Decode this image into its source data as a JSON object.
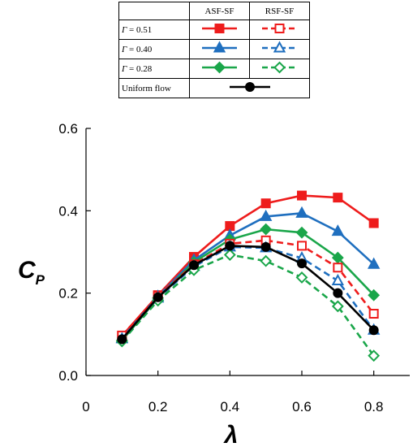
{
  "legend": {
    "header": [
      "",
      "ASF-SF",
      "RSF-SF"
    ],
    "rows": [
      {
        "gamma_symbol": "Γ",
        "eq": " = 0.51",
        "color": "#ee1c1c",
        "marker": "square"
      },
      {
        "gamma_symbol": "Γ",
        "eq": " = 0.40",
        "color": "#1f6fbf",
        "marker": "triangle"
      },
      {
        "gamma_symbol": "Γ",
        "eq": " = 0.28",
        "color": "#1aa64a",
        "marker": "diamond"
      }
    ],
    "uniform": {
      "label": "Uniform flow",
      "color": "#000000",
      "marker": "circle"
    }
  },
  "chart_data": {
    "type": "line",
    "xlabel": "λ",
    "ylabel_main": "C",
    "ylabel_sub": "P",
    "xlim": [
      0,
      0.9
    ],
    "ylim": [
      0,
      0.6
    ],
    "xticks": [
      0,
      0.2,
      0.4,
      0.6,
      0.8
    ],
    "xtick_labels": [
      "0",
      "0.2",
      "0.4",
      "0.6",
      "0.8"
    ],
    "yticks": [
      0,
      0.2,
      0.4,
      0.6
    ],
    "ytick_labels": [
      "0.0",
      "0.2",
      "0.4",
      "0.6"
    ],
    "x": [
      0.1,
      0.2,
      0.3,
      0.4,
      0.5,
      0.6,
      0.7,
      0.8
    ],
    "series": [
      {
        "name": "ASF-SF Γ = 0.51",
        "color": "#ee1c1c",
        "marker": "square",
        "filled": true,
        "dashed": false,
        "values": [
          0.096,
          0.195,
          0.288,
          0.363,
          0.418,
          0.437,
          0.432,
          0.37
        ]
      },
      {
        "name": "ASF-SF Γ = 0.40",
        "color": "#1f6fbf",
        "marker": "triangle",
        "filled": true,
        "dashed": false,
        "values": [
          0.09,
          0.192,
          0.28,
          0.34,
          0.386,
          0.394,
          0.35,
          0.27
        ]
      },
      {
        "name": "ASF-SF Γ = 0.28",
        "color": "#1aa64a",
        "marker": "diamond",
        "filled": true,
        "dashed": false,
        "values": [
          0.085,
          0.188,
          0.275,
          0.33,
          0.355,
          0.347,
          0.286,
          0.195
        ]
      },
      {
        "name": "RSF-SF Γ = 0.51",
        "color": "#ee1c1c",
        "marker": "square",
        "filled": false,
        "dashed": true,
        "values": [
          0.097,
          0.193,
          0.27,
          0.32,
          0.328,
          0.315,
          0.262,
          0.15
        ]
      },
      {
        "name": "RSF-SF Γ = 0.40",
        "color": "#1f6fbf",
        "marker": "triangle",
        "filled": false,
        "dashed": true,
        "values": [
          0.089,
          0.188,
          0.265,
          0.312,
          0.31,
          0.285,
          0.23,
          0.11
        ]
      },
      {
        "name": "RSF-SF Γ = 0.28",
        "color": "#1aa64a",
        "marker": "diamond",
        "filled": false,
        "dashed": true,
        "values": [
          0.083,
          0.182,
          0.256,
          0.293,
          0.278,
          0.238,
          0.168,
          0.048
        ]
      },
      {
        "name": "Uniform flow",
        "color": "#000000",
        "marker": "circle",
        "filled": true,
        "dashed": false,
        "values": [
          0.088,
          0.19,
          0.268,
          0.315,
          0.312,
          0.272,
          0.2,
          0.11
        ]
      }
    ]
  }
}
